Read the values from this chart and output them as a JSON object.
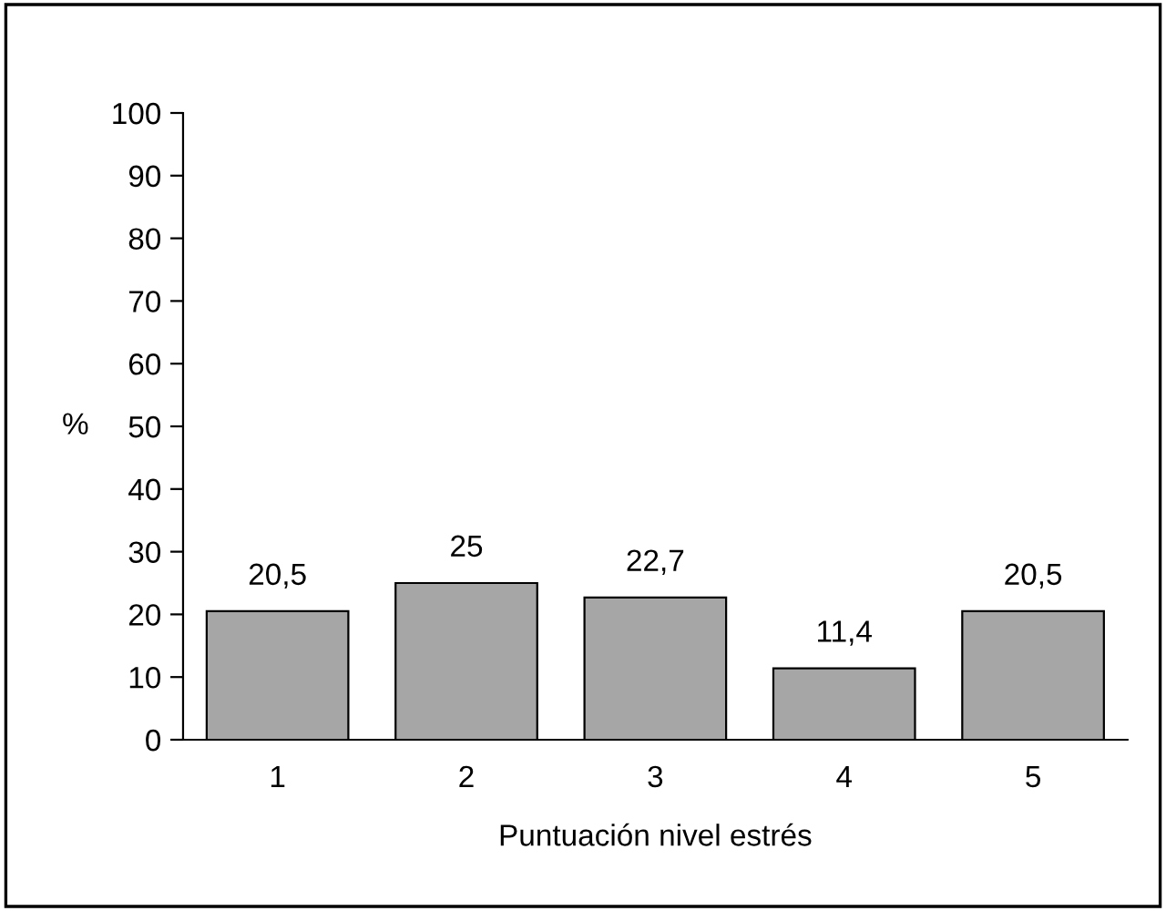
{
  "chart_data": {
    "type": "bar",
    "xlabel": "Puntuación nivel estrés",
    "ylabel": "%",
    "categories": [
      "1",
      "2",
      "3",
      "4",
      "5"
    ],
    "values": [
      20.5,
      25,
      22.7,
      11.4,
      20.5
    ],
    "value_labels": [
      "20,5",
      "25",
      "22,7",
      "11,4",
      "20,5"
    ],
    "color": "#a6a6a6",
    "ylim": [
      0,
      100
    ],
    "yticks": [
      0,
      10,
      20,
      30,
      40,
      50,
      60,
      70,
      80,
      90,
      100
    ],
    "grid": false
  }
}
